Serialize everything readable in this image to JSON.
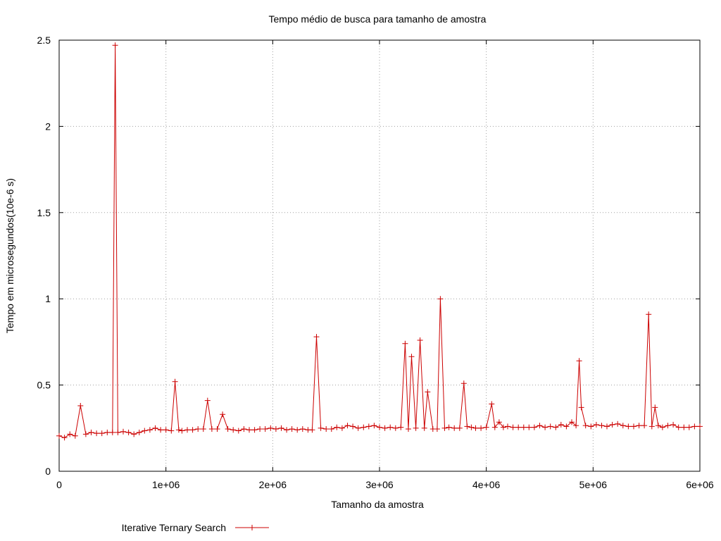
{
  "chart_data": {
    "type": "line",
    "title": "Tempo médio de busca para tamanho de amostra",
    "xlabel": "Tamanho da amostra",
    "ylabel": "Tempo em microsegundos(10e-6 s)",
    "xlim": [
      0,
      6000000
    ],
    "ylim": [
      0,
      2.5
    ],
    "x_ticks": [
      0,
      1000000,
      2000000,
      3000000,
      4000000,
      5000000,
      6000000
    ],
    "x_tick_labels": [
      "0",
      "1e+06",
      "2e+06",
      "3e+06",
      "4e+06",
      "5e+06",
      "6e+06"
    ],
    "y_ticks": [
      0,
      0.5,
      1,
      1.5,
      2,
      2.5
    ],
    "y_tick_labels": [
      "0",
      "0.5",
      "1",
      "1.5",
      "2",
      "2.5"
    ],
    "grid": true,
    "legend_position": "bottom-left",
    "series": [
      {
        "name": "Iterative Ternary Search",
        "color": "#cc0000",
        "marker": "plus",
        "x": [
          0,
          50000,
          100000,
          150000,
          200000,
          250000,
          300000,
          350000,
          400000,
          450000,
          500000,
          525000,
          550000,
          600000,
          650000,
          700000,
          750000,
          800000,
          850000,
          900000,
          950000,
          1000000,
          1050000,
          1085000,
          1120000,
          1150000,
          1200000,
          1250000,
          1300000,
          1350000,
          1390000,
          1430000,
          1480000,
          1530000,
          1580000,
          1630000,
          1680000,
          1730000,
          1780000,
          1830000,
          1880000,
          1930000,
          1980000,
          2030000,
          2080000,
          2130000,
          2180000,
          2230000,
          2280000,
          2330000,
          2370000,
          2410000,
          2450000,
          2500000,
          2550000,
          2600000,
          2650000,
          2700000,
          2750000,
          2800000,
          2850000,
          2900000,
          2950000,
          3000000,
          3050000,
          3100000,
          3150000,
          3200000,
          3240000,
          3270000,
          3300000,
          3340000,
          3380000,
          3420000,
          3450000,
          3500000,
          3540000,
          3570000,
          3610000,
          3650000,
          3700000,
          3750000,
          3790000,
          3820000,
          3860000,
          3900000,
          3950000,
          4000000,
          4050000,
          4080000,
          4120000,
          4160000,
          4200000,
          4250000,
          4300000,
          4350000,
          4400000,
          4450000,
          4500000,
          4550000,
          4600000,
          4650000,
          4700000,
          4750000,
          4800000,
          4840000,
          4870000,
          4890000,
          4930000,
          4980000,
          5030000,
          5080000,
          5130000,
          5180000,
          5230000,
          5280000,
          5330000,
          5380000,
          5430000,
          5480000,
          5520000,
          5550000,
          5580000,
          5610000,
          5650000,
          5700000,
          5750000,
          5800000,
          5850000,
          5900000,
          5950000,
          6000000
        ],
        "values": [
          0.205,
          0.195,
          0.215,
          0.205,
          0.38,
          0.215,
          0.225,
          0.22,
          0.22,
          0.225,
          0.225,
          2.47,
          0.225,
          0.23,
          0.225,
          0.215,
          0.225,
          0.235,
          0.24,
          0.25,
          0.24,
          0.24,
          0.235,
          0.52,
          0.24,
          0.235,
          0.24,
          0.24,
          0.245,
          0.245,
          0.41,
          0.245,
          0.245,
          0.33,
          0.245,
          0.24,
          0.235,
          0.245,
          0.24,
          0.24,
          0.245,
          0.245,
          0.25,
          0.245,
          0.25,
          0.24,
          0.245,
          0.24,
          0.245,
          0.24,
          0.24,
          0.78,
          0.25,
          0.245,
          0.245,
          0.255,
          0.25,
          0.265,
          0.26,
          0.25,
          0.255,
          0.26,
          0.265,
          0.255,
          0.25,
          0.255,
          0.25,
          0.255,
          0.74,
          0.245,
          0.665,
          0.25,
          0.76,
          0.25,
          0.46,
          0.245,
          0.245,
          1.0,
          0.25,
          0.255,
          0.25,
          0.25,
          0.51,
          0.26,
          0.255,
          0.25,
          0.25,
          0.255,
          0.39,
          0.255,
          0.285,
          0.255,
          0.26,
          0.255,
          0.255,
          0.255,
          0.255,
          0.255,
          0.265,
          0.255,
          0.26,
          0.255,
          0.27,
          0.26,
          0.285,
          0.265,
          0.64,
          0.37,
          0.265,
          0.26,
          0.27,
          0.265,
          0.26,
          0.27,
          0.275,
          0.265,
          0.26,
          0.26,
          0.265,
          0.265,
          0.91,
          0.26,
          0.37,
          0.265,
          0.255,
          0.265,
          0.27,
          0.255,
          0.255,
          0.255,
          0.26,
          0.26
        ]
      }
    ]
  }
}
